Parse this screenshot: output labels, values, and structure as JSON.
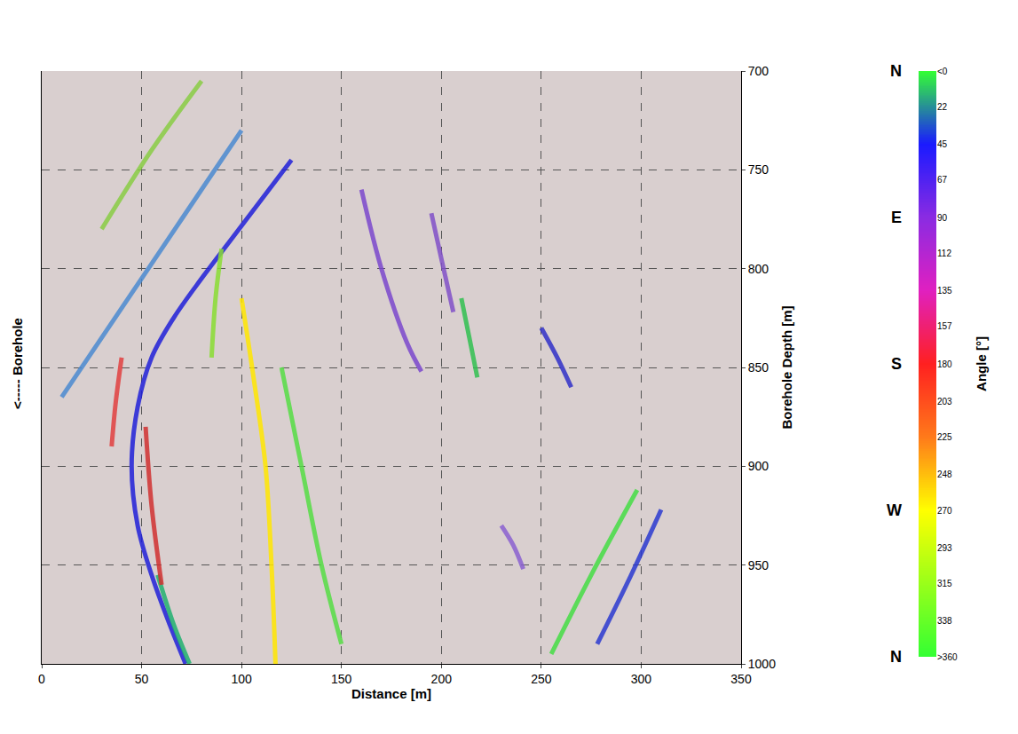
{
  "chart_data": {
    "type": "line",
    "x_title": "Distance [m]",
    "y_title": "Borehole Depth [m]",
    "annotations": [
      {
        "text": "<----- Borehole"
      }
    ],
    "xlim": [
      0,
      350
    ],
    "xticks": [
      0,
      50,
      100,
      150,
      200,
      250,
      300,
      350
    ],
    "ylim": [
      1000,
      700
    ],
    "yticks": [
      700,
      750,
      800,
      850,
      900,
      950,
      1000
    ],
    "grid": true,
    "series": [
      {
        "color": "#2020d8",
        "x": [
          125,
          110,
          95,
          80,
          66,
          55,
          48,
          45,
          48,
          55,
          64,
          72
        ],
        "values": [
          745,
          765,
          785,
          805,
          825,
          845,
          870,
          900,
          930,
          955,
          980,
          1000
        ]
      },
      {
        "color": "#20b070",
        "x": [
          58,
          66,
          74
        ],
        "values": [
          955,
          980,
          1000
        ]
      },
      {
        "color": "#e04040",
        "x": [
          40,
          37,
          35
        ],
        "values": [
          845,
          868,
          890
        ]
      },
      {
        "color": "#d03030",
        "x": [
          52,
          55,
          60
        ],
        "values": [
          880,
          920,
          960
        ]
      },
      {
        "color": "#4a8ad0",
        "x": [
          10,
          40,
          70,
          100
        ],
        "values": [
          865,
          820,
          775,
          730
        ]
      },
      {
        "color": "#88cc44",
        "x": [
          30,
          55,
          80
        ],
        "values": [
          780,
          740,
          705
        ]
      },
      {
        "color": "#88dd33",
        "x": [
          90,
          87,
          85
        ],
        "values": [
          790,
          815,
          845
        ]
      },
      {
        "color": "#ffe600",
        "x": [
          100,
          106,
          112,
          115,
          117
        ],
        "values": [
          815,
          855,
          900,
          950,
          1000
        ]
      },
      {
        "color": "#55dd44",
        "x": [
          120,
          130,
          140,
          150
        ],
        "values": [
          850,
          900,
          950,
          990
        ]
      },
      {
        "color": "#7a48cc",
        "x": [
          160,
          170,
          183,
          190
        ],
        "values": [
          760,
          800,
          838,
          852
        ]
      },
      {
        "color": "#8050c8",
        "x": [
          195,
          200,
          206
        ],
        "values": [
          772,
          795,
          822
        ]
      },
      {
        "color": "#30c050",
        "x": [
          210,
          214,
          218
        ],
        "values": [
          815,
          835,
          855
        ]
      },
      {
        "color": "#3030c8",
        "x": [
          250,
          258,
          265
        ],
        "values": [
          830,
          845,
          860
        ]
      },
      {
        "color": "#44dd44",
        "x": [
          255,
          275,
          298
        ],
        "values": [
          995,
          955,
          912
        ]
      },
      {
        "color": "#2a3ad0",
        "x": [
          278,
          295,
          310
        ],
        "values": [
          990,
          955,
          922
        ]
      },
      {
        "color": "#8a60d0",
        "x": [
          230,
          236,
          241
        ],
        "values": [
          930,
          940,
          952
        ]
      }
    ],
    "colorbar": {
      "title": "Angle [°]",
      "range": [
        0,
        360
      ],
      "ticks": [
        {
          "value": 0,
          "label": "<0"
        },
        22,
        45,
        67,
        90,
        112,
        135,
        157,
        180,
        203,
        225,
        248,
        270,
        293,
        315,
        338,
        {
          "value": 360,
          "label": ">360"
        }
      ],
      "compass": [
        {
          "value": 0,
          "label": "N"
        },
        {
          "value": 90,
          "label": "E"
        },
        {
          "value": 180,
          "label": "S"
        },
        {
          "value": 270,
          "label": "W"
        },
        {
          "value": 360,
          "label": "N"
        }
      ],
      "colorscale": [
        [
          0,
          "#33ff33"
        ],
        [
          45,
          "#1a1aff"
        ],
        [
          90,
          "#8a2be2"
        ],
        [
          135,
          "#e020c0"
        ],
        [
          180,
          "#ff2020"
        ],
        [
          225,
          "#ff7a1a"
        ],
        [
          270,
          "#ffff00"
        ],
        [
          360,
          "#33ff33"
        ]
      ]
    }
  }
}
